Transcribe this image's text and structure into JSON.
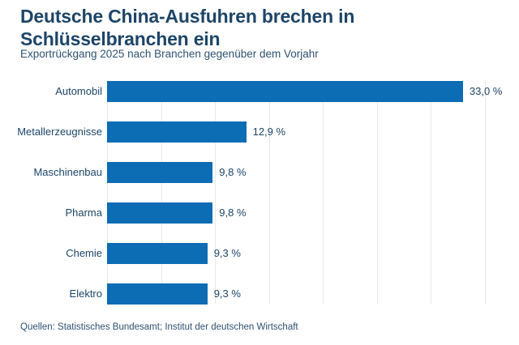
{
  "header": {
    "title_line1": "Deutsche China-Ausfuhren brechen in",
    "title_line2": "Schlüsselbranchen ein",
    "subtitle": "Exportrückgang 2025 nach Branchen gegenüber dem Vorjahr"
  },
  "chart_data": {
    "type": "bar",
    "orientation": "horizontal",
    "title": "Deutsche China-Ausfuhren brechen in Schlüsselbranchen ein",
    "subtitle": "Exportrückgang 2025 nach Branchen gegenüber dem Vorjahr",
    "categories": [
      "Automobil",
      "Metallerzeugnisse",
      "Maschinenbau",
      "Pharma",
      "Chemie",
      "Elektro"
    ],
    "values": [
      33.0,
      12.9,
      9.8,
      9.8,
      9.3,
      9.3
    ],
    "value_labels": [
      "33,0 %",
      "12,9 %",
      "9,8 %",
      "9,8 %",
      "9,3 %",
      "9,3 %"
    ],
    "xlabel": "",
    "ylabel": "",
    "xlim": [
      0,
      35
    ],
    "gridline_step": 5,
    "grid": true,
    "legend": false,
    "value_label_position": "right-of-bar"
  },
  "colors": {
    "bar": "#0c6cb4",
    "title": "#1d4568",
    "text": "#2e5272",
    "gridline": "#e8e8e8",
    "background": "#ffffff"
  },
  "footer": {
    "sources": "Quellen: Statistisches Bundesamt; Institut der deutschen Wirtschaft"
  }
}
